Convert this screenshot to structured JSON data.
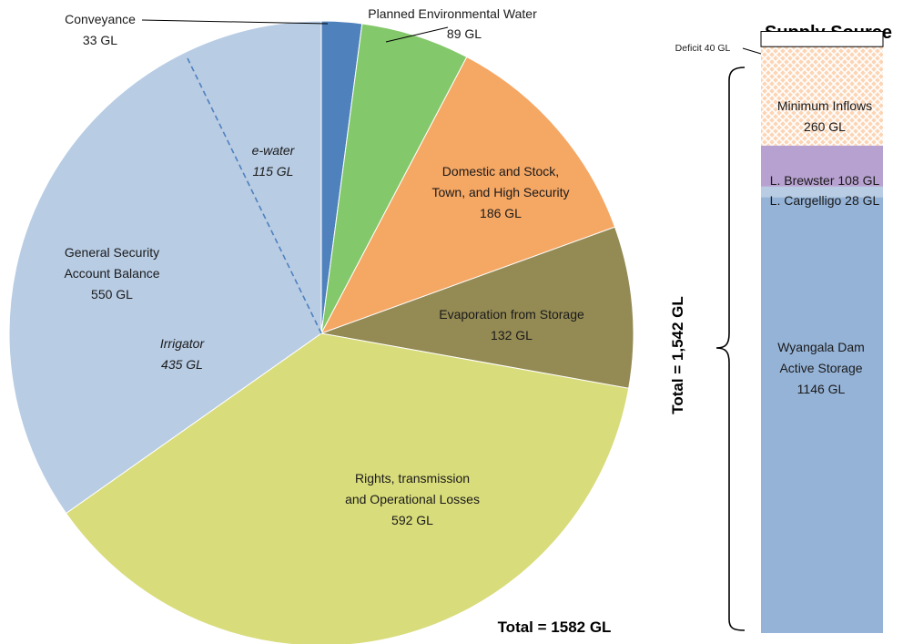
{
  "chart_data": [
    {
      "type": "pie",
      "slices": [
        {
          "label": "Conveyance",
          "value": 33,
          "value_label": "33 GL",
          "color": "#4f81bd"
        },
        {
          "label": "Planned Environmental Water",
          "value": 89,
          "value_label": "89 GL",
          "color": "#83c86a"
        },
        {
          "label": "Domestic and Stock, Town, and High Security",
          "value": 186,
          "value_label": "186 GL",
          "color": "#f5a764"
        },
        {
          "label": "Evaporation from Storage",
          "value": 132,
          "value_label": "132 GL",
          "color": "#948a54"
        },
        {
          "label": "Rights, transmission and Operational Losses",
          "value": 592,
          "value_label": "592 GL",
          "color": "#d8dc7a"
        },
        {
          "label": "General Security Account Balance",
          "value": 550,
          "value_label": "550 GL",
          "color": "#b8cce4",
          "subdivisions": [
            {
              "label": "Irrigator",
              "value_label": "435 GL"
            },
            {
              "label": "e-water",
              "value_label": "115 GL"
            }
          ]
        }
      ],
      "total_label": "Total = 1582 GL",
      "text": {
        "conveyance": "Conveyance",
        "conveyance_val": "33 GL",
        "pew": "Planned Environmental Water",
        "pew_val": "89 GL",
        "dom_l1": "Domestic and Stock,",
        "dom_l2": "Town, and High Security",
        "dom_val": "186 GL",
        "evap": "Evaporation from Storage",
        "evap_val": "132 GL",
        "rights_l1": "Rights, transmission",
        "rights_l2": "and Operational Losses",
        "rights_val": "592 GL",
        "gs_l1": "General Security",
        "gs_l2": "Account Balance",
        "gs_val": "550 GL",
        "irr": "Irrigator",
        "irr_val": "435 GL",
        "ew": "e-water",
        "ew_val": "115 GL"
      }
    },
    {
      "type": "bar",
      "stacked": true,
      "title": "Supply Source",
      "segments": [
        {
          "label": "Wyangala Dam Active Storage",
          "value": 1146,
          "color": "#95b3d7"
        },
        {
          "label": "L. Cargelligo",
          "value": 28,
          "color": "#b8cce4"
        },
        {
          "label": "L. Brewster",
          "value": 108,
          "color": "#b7a1d0"
        },
        {
          "label": "Minimum Inflows",
          "value": 260,
          "color": "#fcd5b5",
          "pattern": "crosshatch"
        },
        {
          "label": "Deficit",
          "value": 40,
          "color": "#ffffff"
        }
      ],
      "total_label": "Total = 1,542 GL",
      "text": {
        "deficit": "Deficit 40 GL",
        "min_l1": "Minimum Inflows",
        "min_l2": "260 GL",
        "brewster": "L. Brewster 108 GL",
        "cargelligo": "L. Cargelligo 28 GL",
        "wy_l1": "Wyangala Dam",
        "wy_l2": "Active Storage",
        "wy_l3": "1146 GL"
      }
    }
  ]
}
